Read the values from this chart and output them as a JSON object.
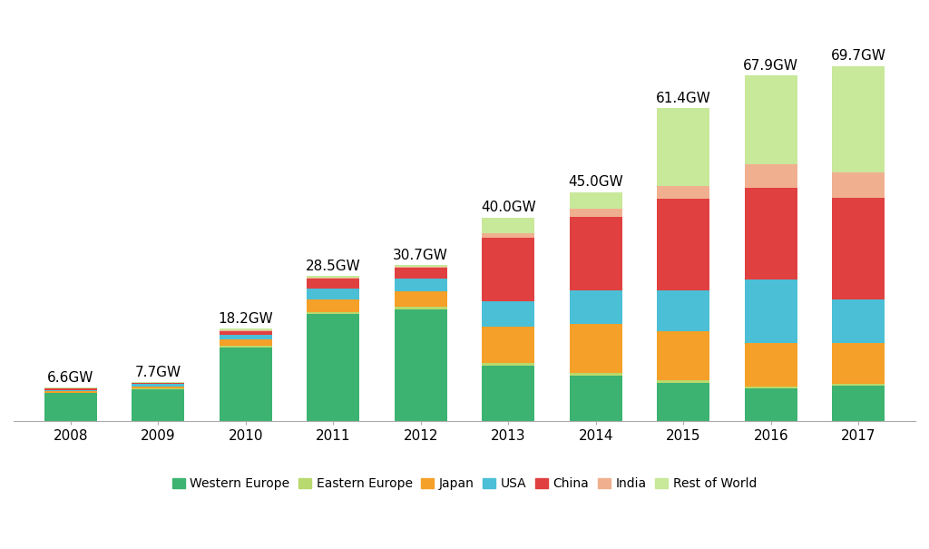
{
  "years": [
    2008,
    2009,
    2010,
    2011,
    2012,
    2013,
    2014,
    2015,
    2016,
    2017
  ],
  "totals": [
    "6.6GW",
    "7.7GW",
    "18.2GW",
    "28.5GW",
    "30.7GW",
    "40.0GW",
    "45.0GW",
    "61.4GW",
    "67.9GW",
    "69.7GW"
  ],
  "series": {
    "Western Europe": [
      5.5,
      6.3,
      14.5,
      21.0,
      22.0,
      11.0,
      9.0,
      7.5,
      6.5,
      7.0
    ],
    "Eastern Europe": [
      0.1,
      0.1,
      0.3,
      0.5,
      0.5,
      0.5,
      0.5,
      0.5,
      0.4,
      0.4
    ],
    "Japan": [
      0.3,
      0.5,
      1.2,
      2.5,
      3.0,
      7.0,
      9.7,
      9.7,
      8.5,
      8.0
    ],
    "USA": [
      0.3,
      0.4,
      1.0,
      2.0,
      2.5,
      5.0,
      6.5,
      8.0,
      12.5,
      8.5
    ],
    "China": [
      0.2,
      0.2,
      0.7,
      2.0,
      2.2,
      12.5,
      14.5,
      18.0,
      18.0,
      20.0
    ],
    "India": [
      0.1,
      0.1,
      0.2,
      0.2,
      0.2,
      1.0,
      1.5,
      2.5,
      4.5,
      5.0
    ],
    "Rest of World": [
      0.1,
      0.1,
      0.3,
      0.3,
      0.3,
      3.0,
      3.3,
      15.2,
      17.5,
      20.8
    ]
  },
  "colors": {
    "Western Europe": "#3cb371",
    "Eastern Europe": "#b8d96e",
    "Japan": "#f5a028",
    "USA": "#4bbfd6",
    "China": "#e04040",
    "India": "#f0b090",
    "Rest of World": "#c8e89a"
  },
  "legend_order": [
    "Western Europe",
    "Eastern Europe",
    "Japan",
    "USA",
    "China",
    "India",
    "Rest of World"
  ],
  "bar_width": 0.6,
  "ylim": [
    0,
    80
  ],
  "figsize": [
    10.24,
    6.05
  ],
  "dpi": 100,
  "bg_color": "#ffffff",
  "label_fontsize": 11,
  "tick_fontsize": 11,
  "legend_fontsize": 10
}
